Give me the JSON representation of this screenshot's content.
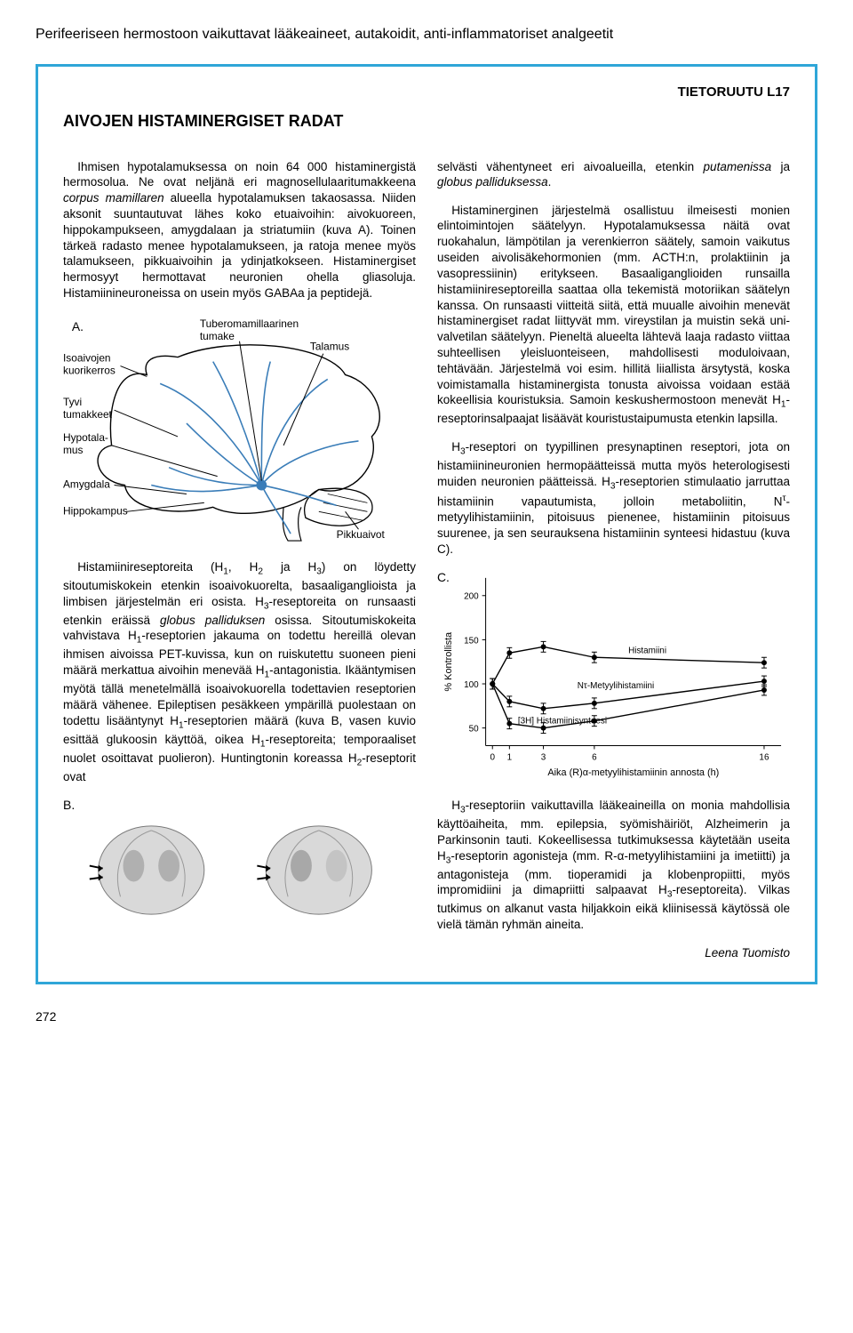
{
  "pageHeader": "Perifeeriseen hermostoon vaikuttavat lääkeaineet, autakoidit, anti-inflammatoriset analgeetit",
  "tietoruutu": "TIETORUUTU L17",
  "boxTitle": "AIVOJEN HISTAMINERGISET RADAT",
  "left": {
    "p1a": "Ihmisen hypotalamuksessa on noin 64 000 histaminergistä hermosolua. Ne ovat neljänä eri magnosellulaaritumakkeena ",
    "p1b_ital": "corpus mamillaren",
    "p1c": " alueella hypotalamuksen takaosassa. Niiden aksonit suuntautuvat lähes koko etuaivoihin: aivokuoreen, hippokampukseen, amygdalaan ja striatumiin (kuva A). Toinen tärkeä radasto menee hypotalamukseen, ja ratoja menee myös talamukseen, pikkuaivoihin ja ydinjatkokseen. Histaminergiset hermosyyt hermottavat neuronien ohella gliasoluja. Histamiinineuroneissa on usein myös GABAa ja peptidejä.",
    "p2a": "Histamiinireseptoreita (H",
    "p2b": ", H",
    "p2c": " ja H",
    "p2d": ") on löydetty sitoutumiskokein etenkin isoaivokuorelta, basaaliganglioista ja limbisen järjestelmän eri osista. H",
    "p2e": "-reseptoreita on runsaasti etenkin eräissä ",
    "p2f_ital": "globus palliduksen",
    "p2g": " osissa. Sitoutumiskokeita vahvistava H",
    "p2h": "-reseptorien jakauma on todettu hereillä olevan ihmisen aivoissa PET-kuvissa, kun on ruiskutettu suoneen pieni määrä merkattua aivoihin menevää H",
    "p2i": "-antagonistia. Ikääntymisen myötä tällä menetelmällä isoaivokuorella todettavien reseptorien määrä vähenee. Epileptisen pesäkkeen ympärillä puolestaan on todettu lisääntynyt H",
    "p2j": "-reseptorien määrä (kuva B, vasen kuvio esittää glukoosin käyttöä, oikea H",
    "p2k": "-reseptoreita; temporaaliset nuolet osoittavat puolieron). Huntingtonin koreassa H",
    "p2l": "-reseptorit ovat",
    "labelB": "B."
  },
  "right": {
    "p1a": "selvästi vähentyneet eri aivoalueilla, etenkin ",
    "p1b_ital": "putamenissa",
    "p1c": " ja ",
    "p1d_ital": "globus palliduksessa",
    "p1e": ".",
    "p2": "Histaminerginen järjestelmä osallistuu ilmeisesti monien elintoimintojen säätelyyn. Hypotalamuksessa näitä ovat ruokahalun, lämpötilan ja verenkierron säätely, samoin vaikutus useiden aivolisäkehormonien (mm. ACTH:n, prolaktiinin ja vasopressiinin) eritykseen. Basaaliganglioiden runsailla histamiinireseptoreilla saattaa olla tekemistä motoriikan säätelyn kanssa. On runsaasti viitteitä siitä, että muualle aivoihin menevät histaminergiset radat liittyvät mm. vireystilan ja muistin sekä uni-valvetilan säätelyyn. Pieneltä alueelta lähtevä laaja radasto viittaa suhteellisen yleisluonteiseen, mahdollisesti moduloivaan, tehtävään. Järjestelmä voi esim. hillitä liiallista ärsytystä, koska voimistamalla histaminergista tonusta aivoissa voidaan estää kokeellisia kouristuksia. Samoin keskushermostoon menevät H",
    "p2b": "-reseptorinsalpaajat lisäävät kouristustaipumusta etenkin lapsilla.",
    "p3a": "H",
    "p3b": "-reseptori on tyypillinen presynaptinen reseptori, jota on histamiinineuronien hermopäätteissä mutta myös heterologisesti muiden neuronien päätteissä. H",
    "p3c": "-reseptorien stimulaatio jarruttaa histamiinin vapautumista, jolloin metaboliitin, N",
    "p3d": "-metyylihistamiinin, pitoisuus pienenee, histamiinin pitoisuus suurenee, ja sen seurauksena histamiinin synteesi hidastuu (kuva C).",
    "p4a": "H",
    "p4b": "-reseptoriin vaikuttavilla lääkeaineilla on monia mahdollisia käyttöaiheita, mm. epilepsia, syömishäiriöt, Alzheimerin ja Parkinsonin tauti. Kokeellisessa tutkimuksessa käytetään useita H",
    "p4c": "-reseptorin agonisteja (mm. R-α-metyylihistamiini ja imetiitti) ja antagonisteja (mm. tioperamidi ja klobenpropiitti, myös impromidiini ja dimapriitti salpaavat H",
    "p4d": "-reseptoreita). Vilkas tutkimus on alkanut vasta hiljakkoin eikä kliinisessä käytössä ole vielä tämän ryhmän aineita.",
    "author": "Leena Tuomisto"
  },
  "brain": {
    "labelA": "A.",
    "isoaivojen": "Isoaivojen",
    "kuorikerros": "kuorikerros",
    "tyvi": "Tyvi",
    "tumakkeet": "tumakkeet",
    "hypotala": "Hypotala-",
    "mus": "mus",
    "amygdala": "Amygdala",
    "hippokampus": "Hippokampus",
    "tubero": "Tuberomamillaarinen",
    "tumake": "tumake",
    "talamus": "Talamus",
    "pikkuaivot": "Pikkuaivot",
    "outlineColor": "#000000",
    "pathColor": "#3a7db8",
    "pathWidth": 1.6
  },
  "chart": {
    "labelC": "C.",
    "ylabel": "% Kontrollista",
    "xlabel": "Aika (R)α-metyylihistamiinin annosta (h)",
    "series": [
      {
        "name": "Histamiini",
        "color": "#000",
        "points": [
          [
            0,
            100
          ],
          [
            1,
            135
          ],
          [
            3,
            142
          ],
          [
            6,
            130
          ],
          [
            16,
            124
          ]
        ]
      },
      {
        "name": "Nτ-Metyylihistamiini",
        "color": "#000",
        "points": [
          [
            0,
            100
          ],
          [
            1,
            80
          ],
          [
            3,
            72
          ],
          [
            6,
            78
          ],
          [
            16,
            103
          ]
        ]
      },
      {
        "name": "[3H] Histamiinisynteesi",
        "color": "#000",
        "points": [
          [
            0,
            100
          ],
          [
            1,
            55
          ],
          [
            3,
            50
          ],
          [
            6,
            58
          ],
          [
            16,
            93
          ]
        ]
      }
    ],
    "yticks": [
      50,
      100,
      150,
      200
    ],
    "xticks": [
      0,
      1,
      3,
      6,
      16
    ],
    "ylim": [
      30,
      220
    ],
    "xlim": [
      -0.4,
      17
    ],
    "s1label": "Histamiini",
    "s2label": "Nτ-Metyylihistamiini",
    "s3label": "[3H] Histamiinisynteesi",
    "axisColor": "#000000",
    "bgColor": "#ffffff",
    "fontSize": 10
  },
  "pageNumber": "272"
}
